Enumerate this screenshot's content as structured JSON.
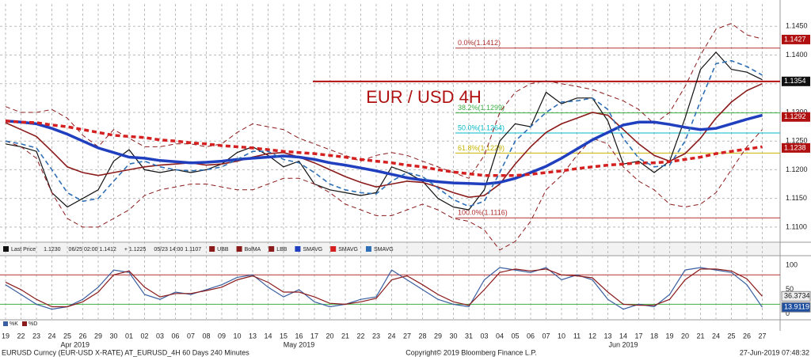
{
  "chart_data": {
    "type": "line",
    "title": "EUR / USD 4H",
    "categories": [
      "19",
      "22",
      "23",
      "24",
      "25",
      "26",
      "29",
      "30",
      "01",
      "02",
      "03",
      "06",
      "07",
      "08",
      "09",
      "10",
      "13",
      "14",
      "15",
      "16",
      "17",
      "20",
      "21",
      "22",
      "23",
      "24",
      "27",
      "28",
      "29",
      "30",
      "31",
      "03",
      "04",
      "05",
      "06",
      "07",
      "10",
      "11",
      "12",
      "13",
      "14",
      "17",
      "18",
      "19",
      "20",
      "21",
      "24",
      "25",
      "26",
      "27"
    ],
    "months": [
      "Apr 2019",
      "May 2019",
      "Jun 2019"
    ],
    "ylim": [
      1.1075,
      1.1489
    ],
    "yticks": [
      {
        "value": 1.11,
        "label": "1.1100"
      },
      {
        "value": 1.115,
        "label": "1.1150"
      },
      {
        "value": 1.12,
        "label": "1.1200"
      },
      {
        "value": 1.125,
        "label": "1.1250"
      },
      {
        "value": 1.13,
        "label": "1.1300"
      },
      {
        "value": 1.135,
        "label": "1.1350"
      },
      {
        "value": 1.14,
        "label": "1.1400"
      },
      {
        "value": 1.145,
        "label": "1.1450"
      }
    ],
    "grid": true,
    "series": [
      {
        "name": "Last Price",
        "color": "#111111",
        "dash": false,
        "width": 1.2,
        "values": [
          1.1245,
          1.124,
          1.1232,
          1.116,
          1.1135,
          1.115,
          1.1165,
          1.1215,
          1.1235,
          1.12,
          1.1195,
          1.12,
          1.1195,
          1.12,
          1.121,
          1.123,
          1.124,
          1.1225,
          1.1205,
          1.1215,
          1.1175,
          1.1165,
          1.116,
          1.1155,
          1.116,
          1.1205,
          1.1195,
          1.118,
          1.115,
          1.1135,
          1.113,
          1.1165,
          1.125,
          1.128,
          1.1275,
          1.1335,
          1.1315,
          1.1325,
          1.1325,
          1.1285,
          1.121,
          1.1215,
          1.1195,
          1.1215,
          1.129,
          1.1375,
          1.1405,
          1.1375,
          1.137,
          1.1357
        ]
      },
      {
        "name": "UBB",
        "color": "#8b1a1a",
        "dash": true,
        "width": 1,
        "values": [
          1.131,
          1.13,
          1.13,
          1.1305,
          1.129,
          1.126,
          1.124,
          1.127,
          1.1255,
          1.124,
          1.124,
          1.1245,
          1.1245,
          1.124,
          1.1245,
          1.1265,
          1.128,
          1.1275,
          1.127,
          1.1255,
          1.1245,
          1.1235,
          1.1225,
          1.1215,
          1.1225,
          1.123,
          1.1225,
          1.1215,
          1.1205,
          1.1195,
          1.1185,
          1.1225,
          1.13,
          1.1335,
          1.135,
          1.1355,
          1.135,
          1.1345,
          1.134,
          1.133,
          1.132,
          1.1305,
          1.128,
          1.13,
          1.1345,
          1.14,
          1.1445,
          1.1455,
          1.1435,
          1.1428
        ]
      },
      {
        "name": "BolMA",
        "color": "#8b1a1a",
        "dash": false,
        "width": 1.6,
        "values": [
          1.1282,
          1.127,
          1.1258,
          1.1232,
          1.1205,
          1.1195,
          1.119,
          1.1195,
          1.12,
          1.1205,
          1.1208,
          1.121,
          1.1212,
          1.1208,
          1.121,
          1.1215,
          1.1222,
          1.1228,
          1.123,
          1.1222,
          1.1212,
          1.12,
          1.1188,
          1.1178,
          1.117,
          1.1175,
          1.118,
          1.1178,
          1.117,
          1.116,
          1.1152,
          1.1155,
          1.1175,
          1.121,
          1.124,
          1.1265,
          1.128,
          1.129,
          1.13,
          1.1295,
          1.127,
          1.1245,
          1.1225,
          1.1215,
          1.1228,
          1.1255,
          1.129,
          1.1318,
          1.1338,
          1.135
        ]
      },
      {
        "name": "LBB",
        "color": "#8b1a1a",
        "dash": true,
        "width": 1,
        "values": [
          1.125,
          1.124,
          1.122,
          1.116,
          1.1115,
          1.11,
          1.11,
          1.1115,
          1.113,
          1.1155,
          1.1165,
          1.117,
          1.1175,
          1.1175,
          1.117,
          1.1165,
          1.1165,
          1.1175,
          1.1185,
          1.1185,
          1.1175,
          1.116,
          1.114,
          1.113,
          1.112,
          1.112,
          1.113,
          1.114,
          1.113,
          1.1115,
          1.111,
          1.1095,
          1.106,
          1.1075,
          1.111,
          1.1165,
          1.119,
          1.1225,
          1.1255,
          1.1245,
          1.1205,
          1.118,
          1.1165,
          1.114,
          1.1135,
          1.114,
          1.116,
          1.12,
          1.124,
          1.127
        ]
      },
      {
        "name": "SMAVG",
        "color": "#1f3fbf",
        "dash": false,
        "width": 3.5,
        "values": [
          1.1285,
          1.1283,
          1.128,
          1.1272,
          1.1262,
          1.125,
          1.1238,
          1.123,
          1.1222,
          1.122,
          1.1216,
          1.1214,
          1.1212,
          1.1213,
          1.1215,
          1.1218,
          1.122,
          1.1222,
          1.1224,
          1.1222,
          1.1218,
          1.1212,
          1.1208,
          1.1203,
          1.1198,
          1.1192,
          1.1186,
          1.1182,
          1.1179,
          1.1177,
          1.1176,
          1.1175,
          1.1178,
          1.1185,
          1.1195,
          1.1206,
          1.122,
          1.1236,
          1.1252,
          1.1265,
          1.1278,
          1.1283,
          1.1283,
          1.1279,
          1.1274,
          1.127,
          1.1272,
          1.128,
          1.1288,
          1.1295
        ]
      },
      {
        "name": "SMAVG",
        "color": "#d42020",
        "dash": true,
        "width": 3.5,
        "values": [
          1.1285,
          1.1283,
          1.1282,
          1.1278,
          1.1275,
          1.127,
          1.1265,
          1.126,
          1.1258,
          1.1256,
          1.1252,
          1.125,
          1.1247,
          1.1245,
          1.1242,
          1.124,
          1.1238,
          1.1235,
          1.1232,
          1.123,
          1.1228,
          1.1225,
          1.1222,
          1.1218,
          1.1215,
          1.1212,
          1.1208,
          1.1205,
          1.12,
          1.1196,
          1.1193,
          1.119,
          1.119,
          1.119,
          1.1192,
          1.1195,
          1.1198,
          1.1202,
          1.1205,
          1.1208,
          1.121,
          1.1212,
          1.1212,
          1.1214,
          1.1218,
          1.1222,
          1.1228,
          1.1232,
          1.1236,
          1.124
        ]
      },
      {
        "name": "SMAVG",
        "color": "#2f6fb5",
        "dash": true,
        "width": 1.6,
        "values": [
          1.125,
          1.1245,
          1.1238,
          1.12,
          1.116,
          1.1145,
          1.115,
          1.118,
          1.121,
          1.1215,
          1.1205,
          1.12,
          1.1198,
          1.12,
          1.1205,
          1.1218,
          1.1232,
          1.1232,
          1.1218,
          1.1212,
          1.1195,
          1.1175,
          1.1165,
          1.116,
          1.1158,
          1.118,
          1.1195,
          1.1188,
          1.1168,
          1.1148,
          1.1136,
          1.1145,
          1.1195,
          1.125,
          1.1275,
          1.13,
          1.1318,
          1.132,
          1.1325,
          1.1305,
          1.1255,
          1.122,
          1.1205,
          1.1208,
          1.125,
          1.132,
          1.1385,
          1.139,
          1.138,
          1.1365
        ]
      }
    ],
    "info": [
      "1.1230",
      "06/25 02:00 1.1412",
      "+ 1.1225",
      "05/23 14:00 1.1107"
    ],
    "fib_levels": [
      {
        "label": "0.0%(1.1412)",
        "value": 1.1412,
        "color": "#b03030"
      },
      {
        "label": "38.2%(1.1299)",
        "value": 1.1299,
        "color": "#3cb043"
      },
      {
        "label": "50.0%(1.1264)",
        "value": 1.1264,
        "color": "#00b8c8"
      },
      {
        "label": "61.8%(1.1229)",
        "value": 1.1229,
        "color": "#c8b400"
      },
      {
        "label": "100.0%(1.1116)",
        "value": 1.1116,
        "color": "#b03030"
      }
    ],
    "resistance": {
      "value": 1.1354,
      "color": "#b01010"
    },
    "price_labels": [
      {
        "value": 1.1427,
        "color": "#b01010"
      },
      {
        "value": 1.1354,
        "color": "#111111"
      },
      {
        "value": 1.1292,
        "color": "#b01010"
      },
      {
        "value": 1.1238,
        "color": "#b01010"
      }
    ],
    "oscillator": {
      "ylim": [
        -10,
        116
      ],
      "yticks": [
        0,
        50,
        100
      ],
      "upper_line": 80,
      "lower_line": 20,
      "series": [
        {
          "name": "%K",
          "color": "#3a5fa0",
          "values": [
            60,
            40,
            20,
            10,
            15,
            30,
            55,
            90,
            85,
            40,
            30,
            45,
            40,
            50,
            60,
            75,
            80,
            55,
            35,
            50,
            25,
            15,
            20,
            30,
            35,
            90,
            70,
            50,
            30,
            20,
            15,
            70,
            95,
            90,
            85,
            95,
            70,
            80,
            70,
            30,
            10,
            20,
            15,
            40,
            90,
            95,
            90,
            85,
            60,
            13.9119
          ]
        },
        {
          "name": "%D",
          "color": "#8b1a1a",
          "values": [
            65,
            50,
            30,
            15,
            15,
            25,
            45,
            80,
            88,
            55,
            35,
            42,
            42,
            48,
            55,
            70,
            78,
            65,
            45,
            45,
            35,
            22,
            20,
            25,
            32,
            70,
            78,
            60,
            40,
            25,
            18,
            50,
            85,
            92,
            88,
            92,
            80,
            78,
            74,
            45,
            20,
            18,
            18,
            30,
            70,
            92,
            92,
            88,
            72,
            36.3734
          ]
        }
      ]
    },
    "footer": {
      "source": "EURUSD Curncy (EUR-USD X-RATE) AT_EURUSD_4H 60 Days 240 Minutes",
      "copyright": "Copyright© 2019 Bloomberg Finance L.P.",
      "timestamp": "27-Jun-2019 07:48:32"
    }
  }
}
